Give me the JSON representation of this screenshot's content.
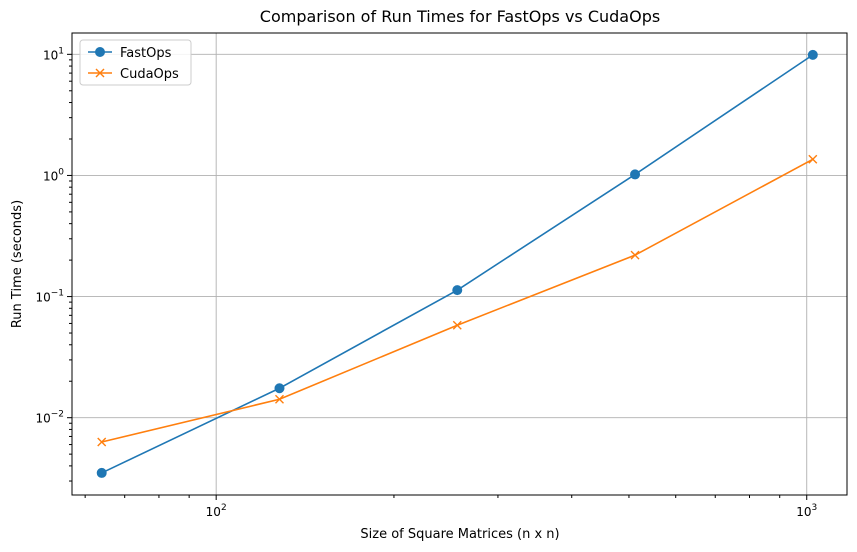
{
  "chart_data": {
    "type": "line",
    "title": "Comparison of Run Times for FastOps vs CudaOps",
    "xlabel": "Size of Square Matrices (n x n)",
    "ylabel": "Run Time (seconds)",
    "xscale": "log",
    "yscale": "log",
    "xlim": [
      57,
      1170
    ],
    "ylim": [
      0.0023,
      15
    ],
    "grid": true,
    "legend_position": "upper-left",
    "x_ticks": [
      {
        "value": 100,
        "base": "10",
        "exp": "2"
      },
      {
        "value": 1000,
        "base": "10",
        "exp": "3"
      }
    ],
    "y_ticks": [
      {
        "value": 0.01,
        "base": "10",
        "exp": "−2"
      },
      {
        "value": 0.1,
        "base": "10",
        "exp": "−1"
      },
      {
        "value": 1,
        "base": "10",
        "exp": "0"
      },
      {
        "value": 10,
        "base": "10",
        "exp": "1"
      }
    ],
    "x": [
      64,
      128,
      256,
      512,
      1024
    ],
    "series": [
      {
        "name": "FastOps",
        "color": "#1f77b4",
        "marker": "circle",
        "values": [
          0.0035,
          0.0175,
          0.113,
          1.02,
          9.9
        ]
      },
      {
        "name": "CudaOps",
        "color": "#ff7f0e",
        "marker": "x",
        "values": [
          0.0063,
          0.0142,
          0.058,
          0.22,
          1.36
        ]
      }
    ]
  }
}
